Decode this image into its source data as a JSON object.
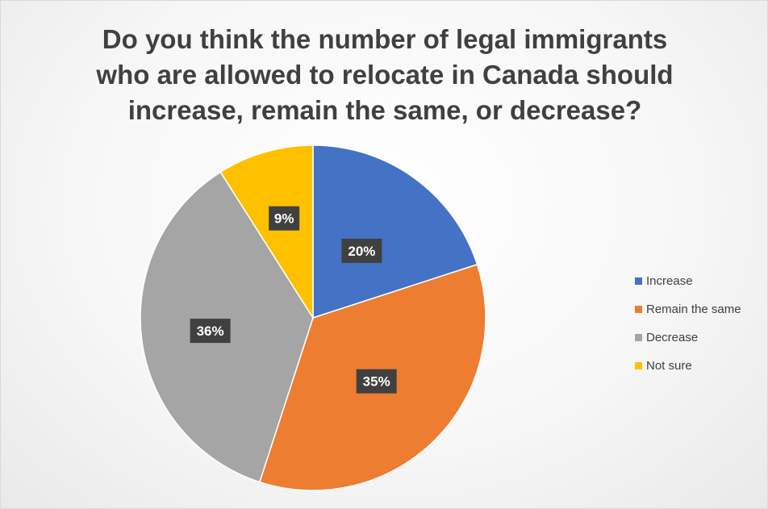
{
  "title_lines": [
    "Do you think the number of legal immigrants",
    "who are allowed to relocate in Canada should",
    "increase, remain the same, or decrease?"
  ],
  "chart_data": {
    "type": "pie",
    "title": "Do you think the number of legal immigrants who are allowed to relocate in Canada should increase, remain the same, or decrease?",
    "categories": [
      "Increase",
      "Remain the same",
      "Decrease",
      "Not sure"
    ],
    "values": [
      20,
      35,
      36,
      9
    ],
    "labels": [
      "20%",
      "35%",
      "36%",
      "9%"
    ],
    "colors": [
      "#4472C4",
      "#ED7D31",
      "#A5A5A5",
      "#FFC000"
    ],
    "legend_position": "right"
  }
}
